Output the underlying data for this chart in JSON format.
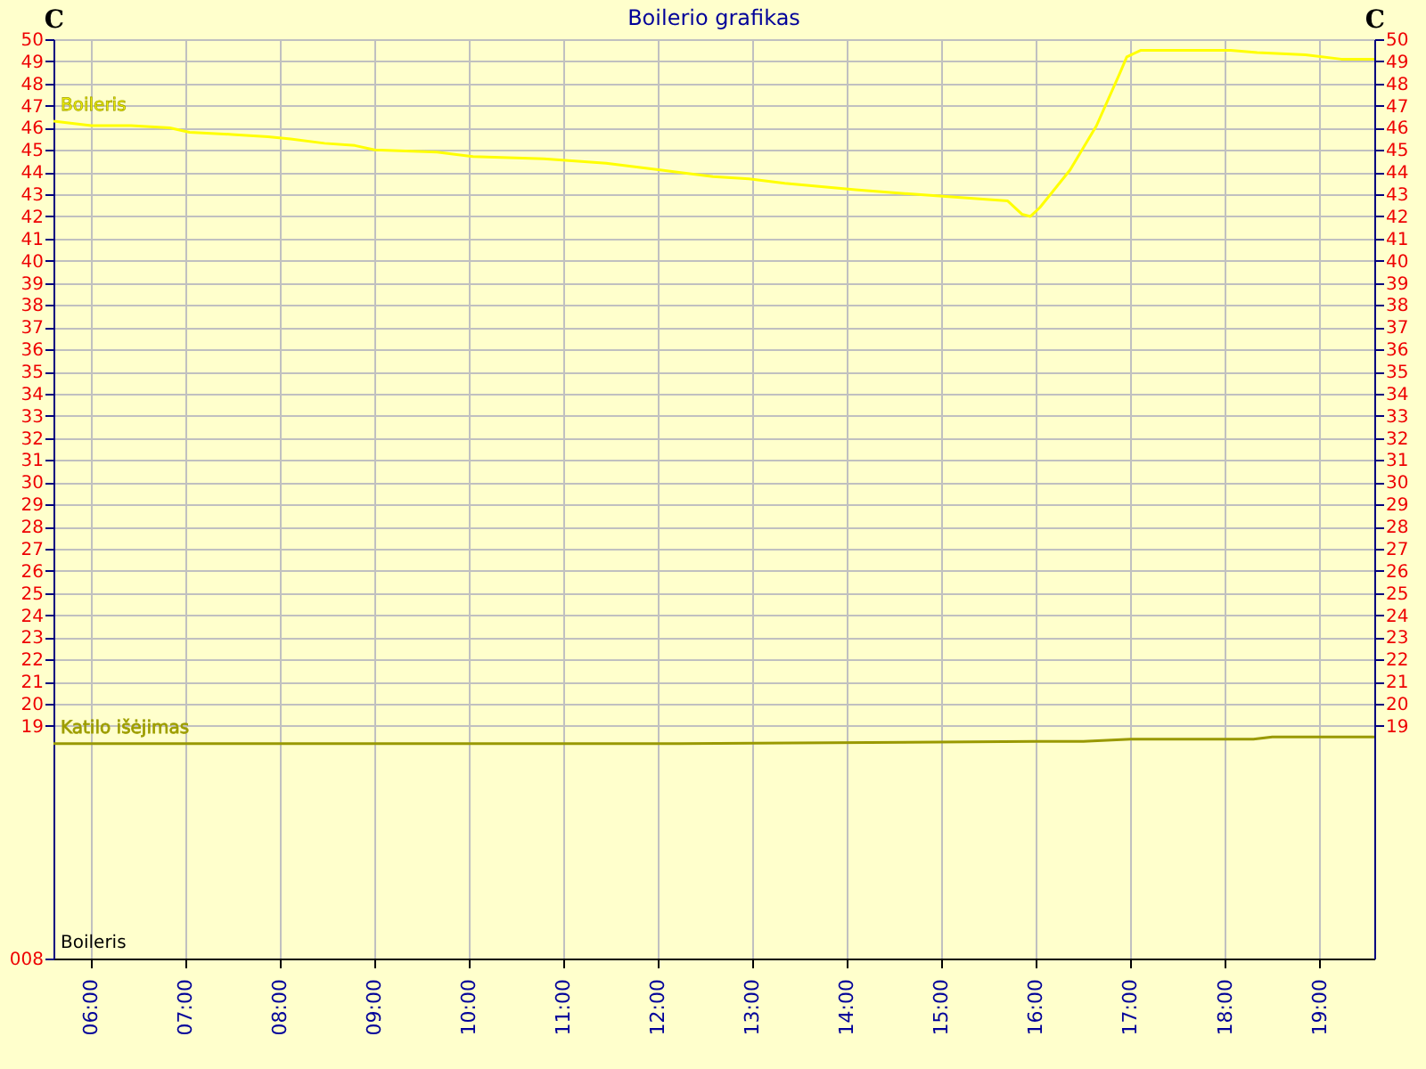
{
  "chart_data": {
    "type": "line",
    "title": "Boilerio grafikas",
    "ylabel": "C",
    "y2label": "C",
    "annotations": [
      "Boileris"
    ],
    "xlim": [
      5.6,
      19.58
    ],
    "xticks": [
      {
        "value": 6,
        "label": "06:00"
      },
      {
        "value": 7,
        "label": "07:00"
      },
      {
        "value": 8,
        "label": "08:00"
      },
      {
        "value": 9,
        "label": "09:00"
      },
      {
        "value": 10,
        "label": "10:00"
      },
      {
        "value": 11,
        "label": "11:00"
      },
      {
        "value": 12,
        "label": "12:00"
      },
      {
        "value": 13,
        "label": "13:00"
      },
      {
        "value": 14,
        "label": "14:00"
      },
      {
        "value": 15,
        "label": "15:00"
      },
      {
        "value": 16,
        "label": "16:00"
      },
      {
        "value": 17,
        "label": "17:00"
      },
      {
        "value": 18,
        "label": "18:00"
      },
      {
        "value": 19,
        "label": "19:00"
      }
    ],
    "ylim": [
      8.5,
      50
    ],
    "yticks": [
      {
        "value": 8.5,
        "label": "008"
      },
      19,
      20,
      21,
      22,
      23,
      24,
      25,
      26,
      27,
      28,
      29,
      30,
      31,
      32,
      33,
      34,
      35,
      36,
      37,
      38,
      39,
      40,
      41,
      42,
      43,
      44,
      45,
      46,
      47,
      48,
      49,
      50
    ],
    "y2lim": [
      8.5,
      50
    ],
    "y2ticks": [
      19,
      20,
      21,
      22,
      23,
      24,
      25,
      26,
      27,
      28,
      29,
      30,
      31,
      32,
      33,
      34,
      35,
      36,
      37,
      38,
      39,
      40,
      41,
      42,
      43,
      44,
      45,
      46,
      47,
      48,
      49,
      50
    ],
    "grid": true,
    "series": [
      {
        "name": "Boileris",
        "color": "#ffff00",
        "x": [
          5.6,
          6.0,
          6.42,
          6.83,
          7.04,
          7.49,
          7.87,
          8.11,
          8.47,
          8.79,
          9.0,
          9.66,
          10.04,
          10.79,
          11.45,
          12.02,
          12.58,
          12.96,
          13.34,
          14.09,
          15.04,
          15.7,
          15.85,
          15.94,
          16.04,
          16.36,
          16.64,
          16.89,
          16.96,
          17.11,
          18.06,
          18.34,
          18.85,
          19.23,
          19.58
        ],
        "values": [
          46.3,
          46.1,
          46.1,
          46.0,
          45.8,
          45.7,
          45.6,
          45.5,
          45.3,
          45.2,
          45.0,
          44.9,
          44.7,
          44.6,
          44.4,
          44.1,
          43.8,
          43.7,
          43.5,
          43.2,
          42.9,
          42.7,
          42.1,
          42.0,
          42.4,
          44.1,
          46.1,
          48.5,
          49.2,
          49.5,
          49.5,
          49.4,
          49.3,
          49.1,
          49.1
        ]
      },
      {
        "name": "Katilo išėjimas",
        "color": "#999900",
        "x": [
          5.6,
          12.0,
          16.0,
          16.5,
          17.0,
          17.8,
          18.3,
          18.5,
          19.0,
          19.58
        ],
        "values": [
          18.2,
          18.2,
          18.3,
          18.3,
          18.4,
          18.4,
          18.4,
          18.5,
          18.5,
          18.5
        ]
      }
    ]
  }
}
